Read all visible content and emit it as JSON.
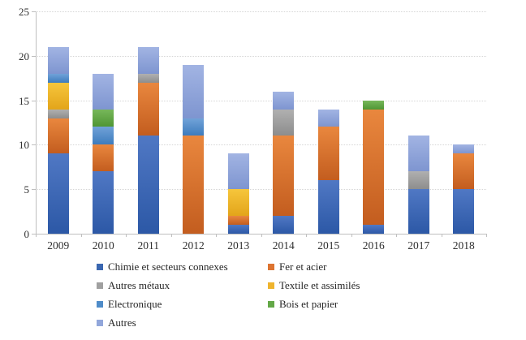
{
  "chart_data": {
    "type": "bar",
    "stacked": true,
    "title": "",
    "xlabel": "",
    "ylabel": "",
    "categories": [
      "2009",
      "2010",
      "2011",
      "2012",
      "2013",
      "2014",
      "2015",
      "2016",
      "2017",
      "2018"
    ],
    "series": [
      {
        "name": "Chimie et secteurs connexes",
        "color": "#3a67b1",
        "color_light": "#5078c4",
        "color_dark": "#2c58a6",
        "values": [
          9,
          7,
          11,
          0,
          1,
          2,
          6,
          1,
          5,
          5
        ]
      },
      {
        "name": "Fer et acier",
        "color": "#dd7431",
        "color_light": "#e9873e",
        "color_dark": "#c35d1f",
        "values": [
          4,
          3,
          6,
          11,
          1,
          9,
          6,
          13,
          0,
          4
        ]
      },
      {
        "name": "Autres métaux",
        "color": "#a0a0a0",
        "color_light": "#b0b0b0",
        "color_dark": "#8d8d8d",
        "values": [
          1,
          0,
          1,
          0,
          0,
          3,
          0,
          0,
          2,
          0
        ]
      },
      {
        "name": "Textile et assimilés",
        "color": "#efb42e",
        "color_light": "#f6c63c",
        "color_dark": "#e3a51a",
        "values": [
          3,
          0,
          0,
          0,
          3,
          0,
          0,
          0,
          0,
          0
        ]
      },
      {
        "name": "Electronique",
        "color": "#4f8cc9",
        "color_light": "#71a2d8",
        "color_dark": "#3d7cbd",
        "values": [
          1,
          2,
          0,
          2,
          0,
          0,
          0,
          0,
          0,
          0
        ]
      },
      {
        "name": "Bois et papier",
        "color": "#63a847",
        "color_light": "#77b75a",
        "color_dark": "#4f9634",
        "values": [
          0,
          2,
          0,
          0,
          0,
          0,
          0,
          1,
          0,
          0
        ]
      },
      {
        "name": "Autres",
        "color": "#92a7db",
        "color_light": "#a2b4e3",
        "color_dark": "#7e95d0",
        "values": [
          3,
          4,
          3,
          6,
          4,
          2,
          2,
          0,
          4,
          1
        ]
      }
    ],
    "totals": [
      21,
      18,
      21,
      19,
      9,
      16,
      14,
      15,
      11,
      10
    ],
    "y_ticks": [
      0,
      5,
      10,
      15,
      20,
      25
    ],
    "ylim": [
      0,
      25
    ],
    "grid": "horizontal-dotted",
    "legend_position": "bottom",
    "legend_columns": 2
  }
}
